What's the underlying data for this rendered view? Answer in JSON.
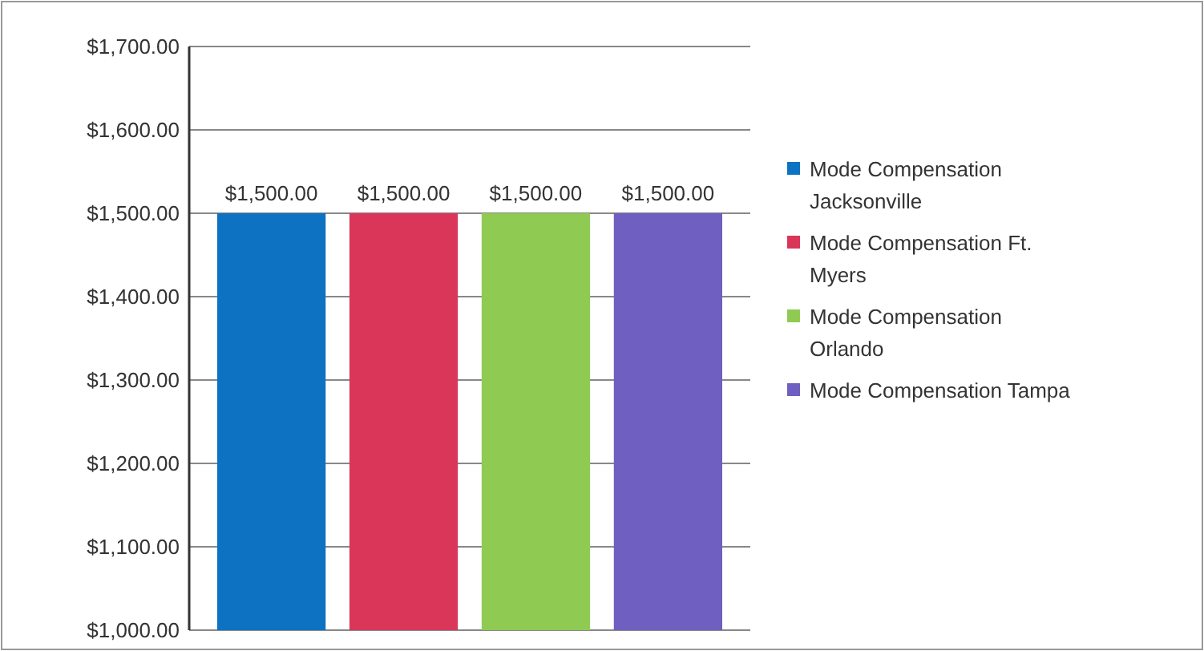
{
  "chart_data": {
    "type": "bar",
    "categories": [
      null
    ],
    "series": [
      {
        "name": "Mode Compensation Jacksonville",
        "color": "#0e72c2",
        "values": [
          1500
        ],
        "value_labels": [
          "$1,500.00"
        ]
      },
      {
        "name": "Mode Compensation Ft. Myers",
        "color": "#d9365a",
        "values": [
          1500
        ],
        "value_labels": [
          "$1,500.00"
        ]
      },
      {
        "name": "Mode Compensation Orlando",
        "color": "#8fcb52",
        "values": [
          1500
        ],
        "value_labels": [
          "$1,500.00"
        ]
      },
      {
        "name": "Mode Compensation Tampa",
        "color": "#6f5fc0",
        "values": [
          1500
        ],
        "value_labels": [
          "$1,500.00"
        ]
      }
    ],
    "ylim": [
      1000,
      1700
    ],
    "yticks": [
      {
        "value": 1000,
        "label": "$1,000.00"
      },
      {
        "value": 1100,
        "label": "$1,100.00"
      },
      {
        "value": 1200,
        "label": "$1,200.00"
      },
      {
        "value": 1300,
        "label": "$1,300.00"
      },
      {
        "value": 1400,
        "label": "$1,400.00"
      },
      {
        "value": 1500,
        "label": "$1,500.00"
      },
      {
        "value": 1600,
        "label": "$1,600.00"
      },
      {
        "value": 1700,
        "label": "$1,700.00"
      }
    ],
    "grid": "y",
    "legend": "right"
  }
}
